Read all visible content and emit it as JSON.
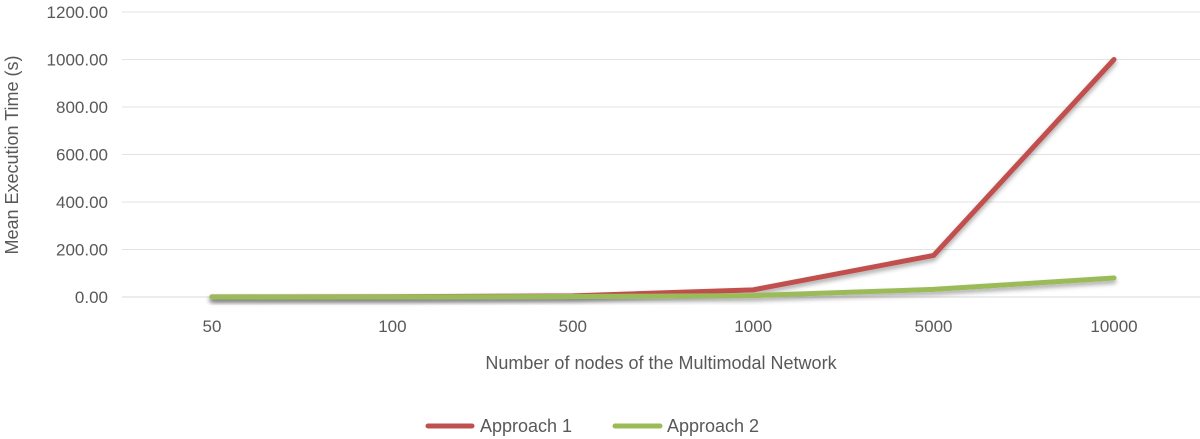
{
  "chart_data": {
    "type": "line",
    "title": "",
    "categories": [
      "50",
      "100",
      "500",
      "1000",
      "5000",
      "10000"
    ],
    "series": [
      {
        "name": "Approach 1",
        "color": "#c0504d",
        "values": [
          0.5,
          1,
          5,
          30,
          175,
          1000
        ]
      },
      {
        "name": "Approach 2",
        "color": "#9bbb59",
        "values": [
          0.2,
          0.5,
          2,
          6,
          32,
          80
        ]
      }
    ],
    "xlabel": "Number of nodes of the Multimodal Network",
    "ylabel": "Mean Execution Time (s)",
    "ylim": [
      0,
      1200
    ],
    "yticks": [
      "0.00",
      "200.00",
      "400.00",
      "600.00",
      "800.00",
      "1000.00",
      "1200.00"
    ],
    "grid": true,
    "legend_position": "bottom"
  }
}
